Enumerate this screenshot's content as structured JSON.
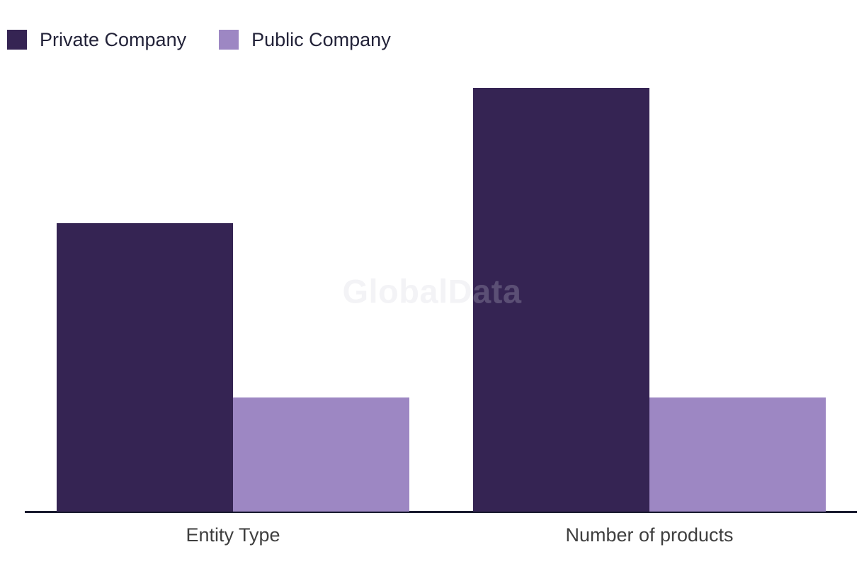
{
  "watermark": {
    "text": "GlobalData"
  },
  "legend": {
    "items": [
      {
        "label": "Private Company",
        "color": "#352453"
      },
      {
        "label": "Public Company",
        "color": "#9d87c3"
      }
    ]
  },
  "chart_data": {
    "type": "bar",
    "title": "",
    "xlabel": "",
    "ylabel": "",
    "categories": [
      "Entity Type",
      "Number of products"
    ],
    "series": [
      {
        "name": "Private Company",
        "color": "#352453",
        "values": [
          68,
          100
        ]
      },
      {
        "name": "Public Company",
        "color": "#9d87c3",
        "values": [
          27,
          27
        ]
      }
    ],
    "ylim": [
      0,
      104
    ],
    "grid": false,
    "y_axis_visible": false,
    "legend_position": "top-left"
  },
  "colors": {
    "background": "#ffffff",
    "axis_line": "#181a2e",
    "axis_label_text": "#3f3f3f",
    "legend_text": "#232339",
    "watermark": "rgba(208,208,218,0.25)"
  }
}
